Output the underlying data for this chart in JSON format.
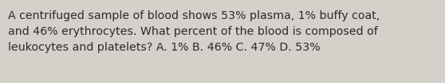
{
  "text": "A centrifuged sample of blood shows 53% plasma, 1% buffy coat,\nand 46% erythrocytes. What percent of the blood is composed of\nleukocytes and platelets? A. 1% B. 46% C. 47% D. 53%",
  "background_color": "#d4d1cb",
  "text_color": "#2b2b2b",
  "font_size": 10.2,
  "fig_width": 5.58,
  "fig_height": 1.05
}
